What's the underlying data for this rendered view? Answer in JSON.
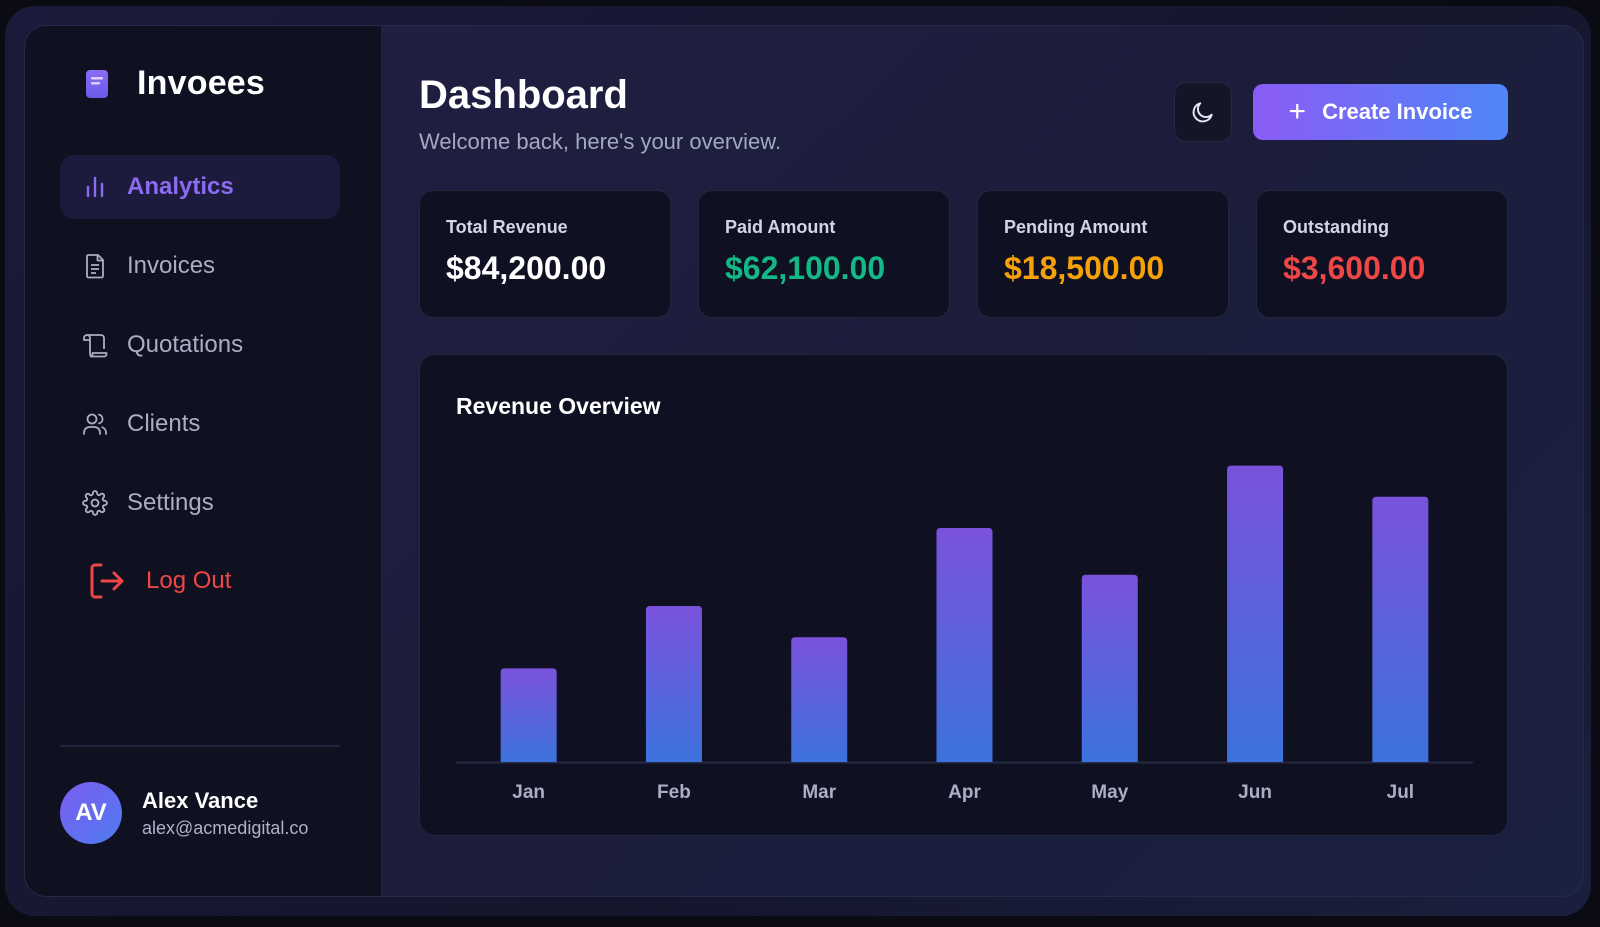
{
  "brand": {
    "name": "Invoees",
    "icon": "document-icon"
  },
  "sidebar": {
    "items": [
      {
        "label": "Analytics",
        "icon": "bar-chart-icon",
        "active": true
      },
      {
        "label": "Invoices",
        "icon": "file-text-icon",
        "active": false
      },
      {
        "label": "Quotations",
        "icon": "scroll-icon",
        "active": false
      },
      {
        "label": "Clients",
        "icon": "users-icon",
        "active": false
      },
      {
        "label": "Settings",
        "icon": "gear-icon",
        "active": false
      }
    ],
    "logout_label": "Log Out"
  },
  "user": {
    "initials": "AV",
    "name": "Alex Vance",
    "email": "alex@acmedigital.co"
  },
  "header": {
    "title": "Dashboard",
    "subtitle": "Welcome back, here's your overview.",
    "theme_toggle_icon": "moon-icon",
    "create_button_label": "Create Invoice"
  },
  "stats": [
    {
      "label": "Total Revenue",
      "value": "$84,200.00",
      "color": "#ffffff"
    },
    {
      "label": "Paid Amount",
      "value": "$62,100.00",
      "color": "#14b886"
    },
    {
      "label": "Pending Amount",
      "value": "$18,500.00",
      "color": "#f5a20a"
    },
    {
      "label": "Outstanding",
      "value": "$3,600.00",
      "color": "#ef4646"
    }
  ],
  "colors": {
    "accent": "#8b5cf6",
    "accent_blue": "#4f86f7",
    "bar_top": "#7a52dc",
    "bar_bottom": "#3c72dc"
  },
  "chart_data": {
    "type": "bar",
    "title": "Revenue Overview",
    "categories": [
      "Jan",
      "Feb",
      "Mar",
      "Apr",
      "May",
      "Jun",
      "Jul"
    ],
    "values": [
      30,
      50,
      40,
      75,
      60,
      95,
      85
    ],
    "ylim": [
      0,
      100
    ],
    "grid": false,
    "legend": "none"
  }
}
